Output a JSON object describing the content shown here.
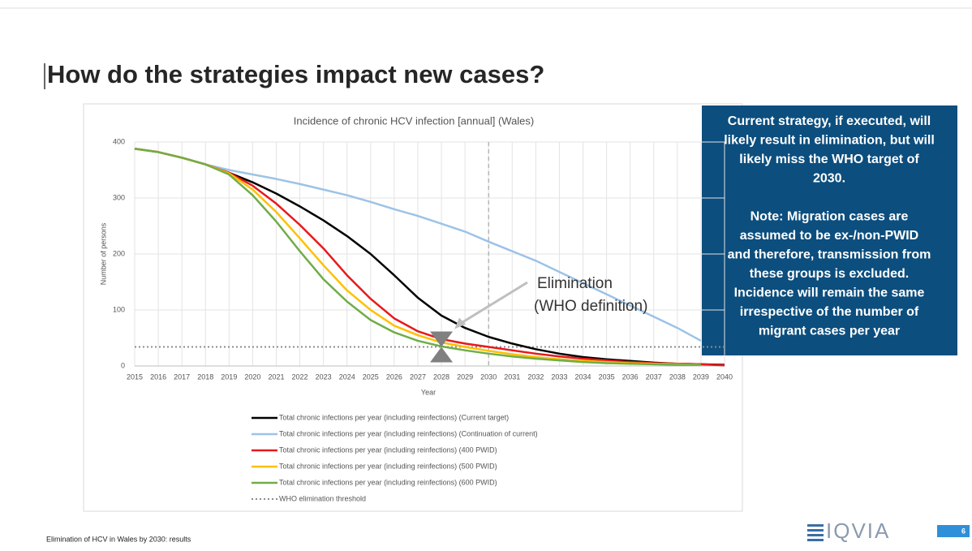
{
  "slide": {
    "title": "How do the strategies impact new cases?",
    "callout": {
      "paragraphs": [
        [
          "Current strategy, if executed, will",
          "likely result in elimination, but will",
          "likely miss the WHO target of",
          "2030."
        ],
        [
          "Note: Migration cases are",
          "assumed to be ex-/non-PWID",
          "and therefore, transmission from",
          "these groups is excluded.",
          "Incidence will remain the same",
          "irrespective of the number of",
          "migrant cases per year"
        ]
      ]
    },
    "footer": "Elimination of HCV in Wales by 2030: results",
    "logo": "IQVIA",
    "page_number": "6"
  },
  "chart_data": {
    "type": "line",
    "title": "Incidence of chronic HCV infection [annual] (Wales)",
    "x_label": "Year",
    "y_label": "Number of persons",
    "x": [
      2015,
      2016,
      2017,
      2018,
      2019,
      2020,
      2021,
      2022,
      2023,
      2024,
      2025,
      2026,
      2027,
      2028,
      2029,
      2030,
      2031,
      2032,
      2033,
      2034,
      2035,
      2036,
      2037,
      2038,
      2039,
      2040
    ],
    "xlim": [
      2015,
      2040
    ],
    "xticks": [
      2015,
      2016,
      2017,
      2018,
      2019,
      2020,
      2021,
      2022,
      2023,
      2024,
      2025,
      2026,
      2027,
      2028,
      2029,
      2030,
      2031,
      2032,
      2033,
      2034,
      2035,
      2036,
      2037,
      2038,
      2039,
      2040
    ],
    "ylim": [
      0,
      400
    ],
    "yticks": [
      0,
      100,
      200,
      300,
      400
    ],
    "grid": true,
    "series": [
      {
        "name": "Total chronic infections per year (including reinfections) (Current target)",
        "color": "#000000",
        "values": [
          388,
          382,
          372,
          360,
          345,
          328,
          308,
          285,
          260,
          232,
          200,
          162,
          122,
          90,
          68,
          52,
          40,
          30,
          22,
          16,
          12,
          9,
          6,
          4,
          3,
          2
        ]
      },
      {
        "name": "Total chronic infections per year (including reinfections) (Continuation of current)",
        "color": "#9dc3e6",
        "values": [
          388,
          382,
          372,
          360,
          350,
          342,
          334,
          325,
          315,
          305,
          293,
          280,
          268,
          254,
          240,
          222,
          205,
          188,
          168,
          148,
          128,
          108,
          88,
          68,
          45,
          null
        ]
      },
      {
        "name": "Total chronic infections per year (including reinfections) (400 PWID)",
        "color": "#e8191c",
        "values": [
          388,
          382,
          372,
          360,
          345,
          322,
          290,
          252,
          210,
          162,
          120,
          85,
          62,
          48,
          40,
          34,
          28,
          22,
          17,
          13,
          10,
          7,
          5,
          4,
          3,
          1
        ]
      },
      {
        "name": "Total chronic infections per year (including reinfections) (500 PWID)",
        "color": "#ffc000",
        "values": [
          388,
          382,
          372,
          360,
          344,
          315,
          275,
          228,
          180,
          135,
          100,
          72,
          55,
          42,
          34,
          27,
          21,
          16,
          12,
          9,
          7,
          5,
          4,
          3,
          2,
          null
        ]
      },
      {
        "name": "Total chronic infections per year (including reinfections) (600 PWID)",
        "color": "#70ad47",
        "values": [
          388,
          382,
          372,
          360,
          342,
          305,
          258,
          205,
          155,
          115,
          82,
          60,
          45,
          35,
          28,
          22,
          17,
          13,
          10,
          7,
          5,
          4,
          3,
          2,
          2,
          null
        ]
      }
    ],
    "threshold": {
      "name": "WHO elimination threshold",
      "value": 34,
      "color": "#8c8c8c"
    },
    "target_year": 2030,
    "annotation": {
      "text": [
        "Elimination",
        "(WHO definition)"
      ],
      "x": 2028,
      "y": 34
    }
  }
}
